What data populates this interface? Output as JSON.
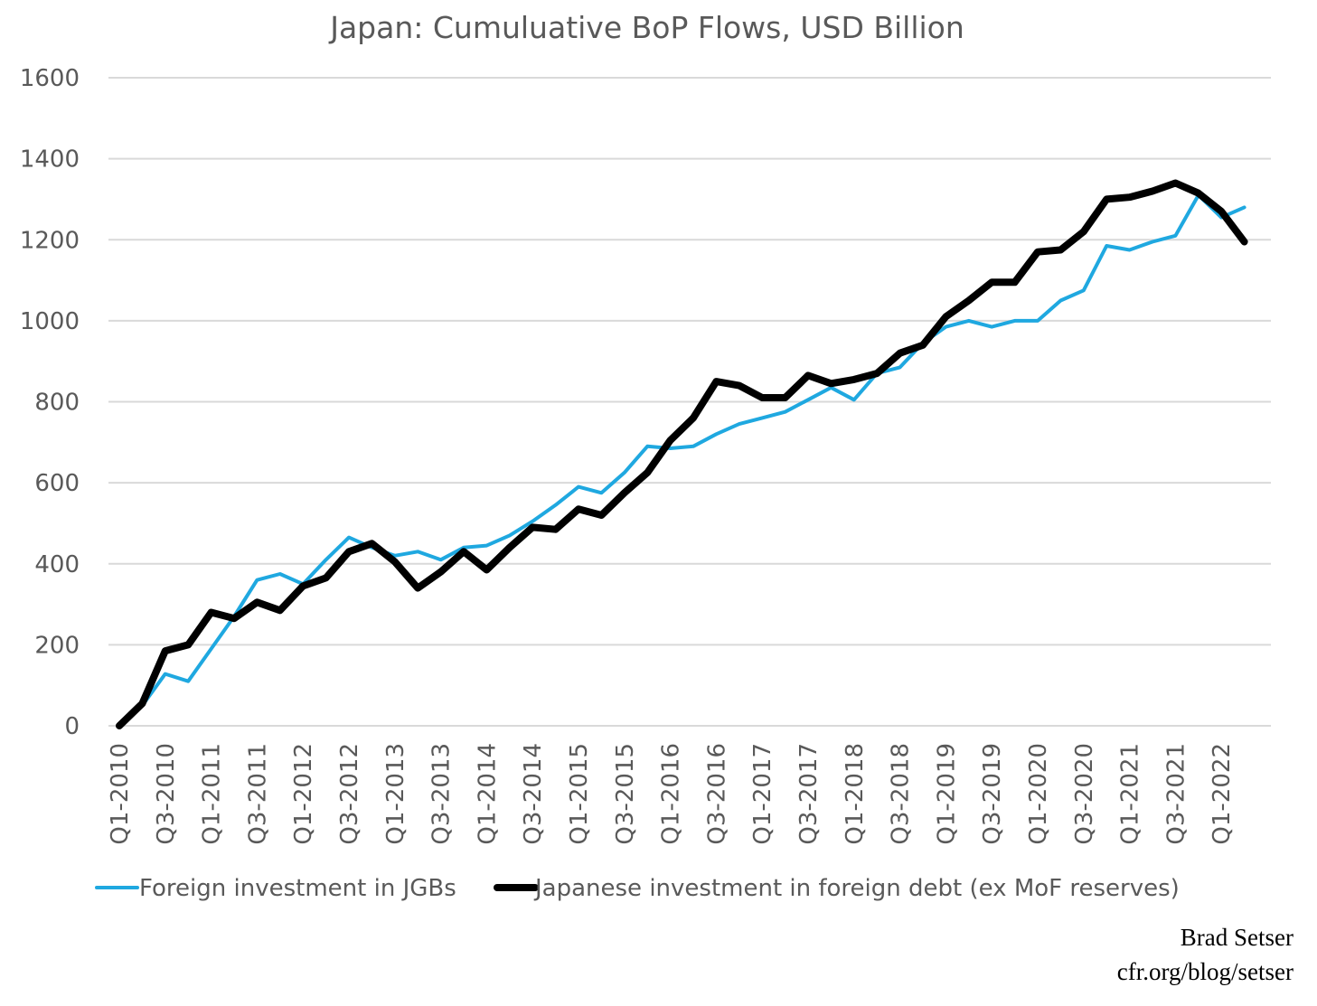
{
  "chart_data": {
    "type": "line",
    "title": "Japan: Cumuluative BoP Flows, USD Billion",
    "xlabel": "",
    "ylabel": "",
    "ylim": [
      0,
      1600
    ],
    "yticks": [
      0,
      200,
      400,
      600,
      800,
      1000,
      1200,
      1400,
      1600
    ],
    "grid": true,
    "legend_position": "bottom",
    "x_tick_labels": [
      "Q1-2010",
      "Q3-2010",
      "Q1-2011",
      "Q3-2011",
      "Q1-2012",
      "Q3-2012",
      "Q1-2013",
      "Q3-2013",
      "Q1-2014",
      "Q3-2014",
      "Q1-2015",
      "Q3-2015",
      "Q1-2016",
      "Q3-2016",
      "Q1-2017",
      "Q3-2017",
      "Q1-2018",
      "Q3-2018",
      "Q1-2019",
      "Q3-2019",
      "Q1-2020",
      "Q3-2020",
      "Q1-2021",
      "Q3-2021",
      "Q1-2022"
    ],
    "categories": [
      "Q1-2010",
      "Q2-2010",
      "Q3-2010",
      "Q4-2010",
      "Q1-2011",
      "Q2-2011",
      "Q3-2011",
      "Q4-2011",
      "Q1-2012",
      "Q2-2012",
      "Q3-2012",
      "Q4-2012",
      "Q1-2013",
      "Q2-2013",
      "Q3-2013",
      "Q4-2013",
      "Q1-2014",
      "Q2-2014",
      "Q3-2014",
      "Q4-2014",
      "Q1-2015",
      "Q2-2015",
      "Q3-2015",
      "Q4-2015",
      "Q1-2016",
      "Q2-2016",
      "Q3-2016",
      "Q4-2016",
      "Q1-2017",
      "Q2-2017",
      "Q3-2017",
      "Q4-2017",
      "Q1-2018",
      "Q2-2018",
      "Q3-2018",
      "Q4-2018",
      "Q1-2019",
      "Q2-2019",
      "Q3-2019",
      "Q4-2019",
      "Q1-2020",
      "Q2-2020",
      "Q3-2020",
      "Q4-2020",
      "Q1-2021",
      "Q2-2021",
      "Q3-2021",
      "Q4-2021",
      "Q1-2022",
      "Q2-2022"
    ],
    "series": [
      {
        "name": "Foreign investment in JGBs",
        "color": "#1fa8e0",
        "values": [
          0,
          50,
          128,
          110,
          190,
          270,
          360,
          375,
          350,
          410,
          465,
          440,
          420,
          430,
          410,
          440,
          445,
          470,
          505,
          545,
          590,
          575,
          625,
          690,
          685,
          690,
          720,
          745,
          760,
          775,
          805,
          835,
          805,
          870,
          885,
          945,
          985,
          1000,
          985,
          1000,
          1000,
          1050,
          1075,
          1185,
          1175,
          1195,
          1210,
          1310,
          1255,
          1280
        ]
      },
      {
        "name": "Japanese investment in foreign debt (ex MoF reserves)",
        "color": "#000000",
        "values": [
          0,
          55,
          185,
          200,
          280,
          265,
          305,
          285,
          345,
          365,
          430,
          450,
          405,
          340,
          380,
          430,
          385,
          440,
          490,
          485,
          535,
          520,
          575,
          625,
          705,
          760,
          850,
          840,
          810,
          810,
          865,
          845,
          855,
          870,
          920,
          940,
          1010,
          1050,
          1095,
          1095,
          1170,
          1175,
          1220,
          1300,
          1305,
          1320,
          1340,
          1315,
          1270,
          1195
        ]
      }
    ]
  },
  "credit": {
    "name": "Brad Setser",
    "url": "cfr.org/blog/setser"
  }
}
